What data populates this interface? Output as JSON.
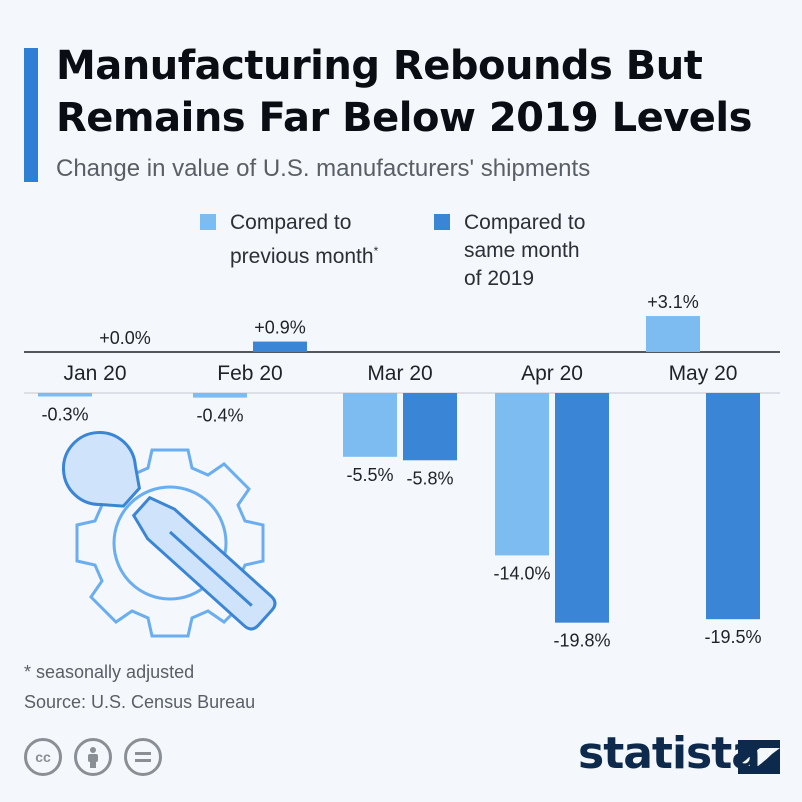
{
  "header": {
    "title": "Manufacturing Rebounds But Remains Far Below 2019 Levels",
    "subtitle": "Change in value of U.S. manufacturers' shipments"
  },
  "legend": {
    "prev_month_label": "Compared to\nprevious month",
    "prev_month_marker": "*",
    "same_month_label": "Compared to\nsame month\nof 2019"
  },
  "colors": {
    "prev_month": "#7dbcf0",
    "same_month_2019": "#3a85d5",
    "accent": "#2f7fd6",
    "text": "#0b0d14",
    "muted": "#5a5f66"
  },
  "chart_data": {
    "type": "bar",
    "categories": [
      "Jan 20",
      "Feb 20",
      "Mar 20",
      "Apr 20",
      "May 20"
    ],
    "series": [
      {
        "name": "Compared to previous month",
        "values": [
          -0.3,
          -0.4,
          -5.5,
          -14.0,
          3.1
        ],
        "labels": [
          "-0.3%",
          "-0.4%",
          "-5.5%",
          "-14.0%",
          "+3.1%"
        ]
      },
      {
        "name": "Compared to same month of 2019",
        "values": [
          0.0,
          0.9,
          -5.8,
          -19.8,
          -19.5
        ],
        "labels": [
          "+0.0%",
          "+0.9%",
          "-5.8%",
          "-19.8%",
          "-19.5%"
        ]
      }
    ],
    "ylim": [
      -19.8,
      3.1
    ],
    "grid": false,
    "legend_position": "top"
  },
  "footer": {
    "footnote": "* seasonally adjusted",
    "source": "Source: U.S. Census Bureau",
    "license_icons": [
      "cc-icon",
      "attribution-icon",
      "no-derivatives-icon"
    ],
    "brand": "statista"
  }
}
